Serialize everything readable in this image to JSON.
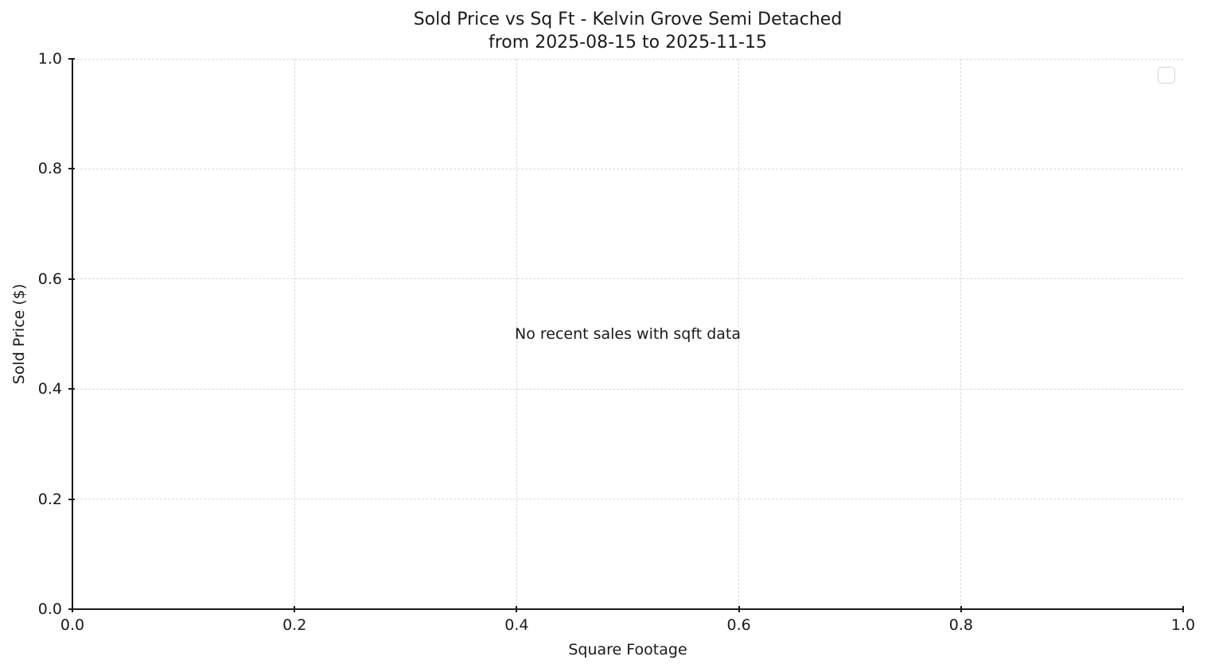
{
  "chart_data": {
    "type": "scatter",
    "title": "Sold Price vs Sq Ft - Kelvin Grove Semi Detached",
    "subtitle": "from 2025-08-15 to 2025-11-15",
    "xlabel": "Square Footage",
    "ylabel": "Sold Price ($)",
    "xlim": [
      0.0,
      1.0
    ],
    "ylim": [
      0.0,
      1.0
    ],
    "x_ticks": [
      0.0,
      0.2,
      0.4,
      0.6,
      0.8,
      1.0
    ],
    "x_tick_labels": [
      "0.0",
      "0.2",
      "0.4",
      "0.6",
      "0.8",
      "1.0"
    ],
    "y_ticks": [
      0.0,
      0.2,
      0.4,
      0.6,
      0.8,
      1.0
    ],
    "y_tick_labels": [
      "0.0",
      "0.2",
      "0.4",
      "0.6",
      "0.8",
      "1.0"
    ],
    "series": [],
    "points": [],
    "annotation": "No recent sales with sqft data",
    "grid": true,
    "grid_style": "dashed",
    "legend": {
      "visible": true,
      "entries": [],
      "position": "upper-right"
    },
    "colors": {
      "background": "#ffffff",
      "text": "#1a1a1a",
      "spine": "#1a1a1a",
      "grid": "#d9d9d9",
      "legend_border": "#d4d4d4"
    }
  }
}
